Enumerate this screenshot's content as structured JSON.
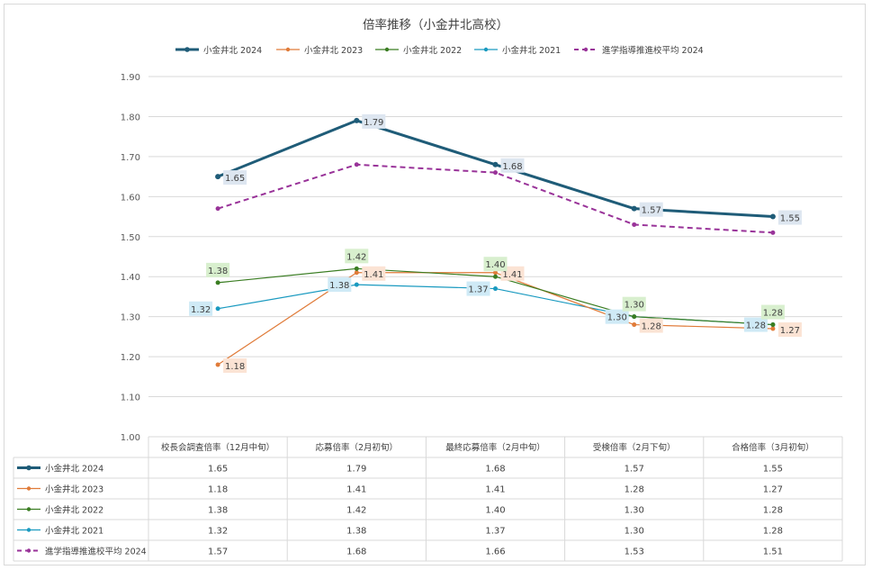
{
  "chart_data": {
    "type": "line",
    "title": "倍率推移（小金井北高校）",
    "categories": [
      "校長会調査倍率（12月中旬）",
      "応募倍率（2月初旬）",
      "最終応募倍率（2月中旬）",
      "受検倍率（2月下旬）",
      "合格倍率（3月初旬）"
    ],
    "ylim": [
      1.0,
      1.9
    ],
    "yticks": [
      "1.00",
      "1.10",
      "1.20",
      "1.30",
      "1.40",
      "1.50",
      "1.60",
      "1.70",
      "1.80",
      "1.90"
    ],
    "grid": true,
    "legend_position": "top",
    "data_table": true,
    "series": [
      {
        "name": "小金井北 2024",
        "values": [
          1.65,
          1.79,
          1.68,
          1.57,
          1.55
        ],
        "labels": [
          "1.65",
          "1.79",
          "1.68",
          "1.57",
          "1.55"
        ],
        "table": [
          "1.65",
          "1.79",
          "1.68",
          "1.57",
          "1.55"
        ],
        "color": "#1f5c78",
        "label_bg": "#dde6f0",
        "dashed": false,
        "width": 3,
        "point_labels": true,
        "label_side": [
          "right",
          "right",
          "right",
          "right",
          "right"
        ]
      },
      {
        "name": "小金井北 2023",
        "values": [
          1.18,
          1.41,
          1.41,
          1.28,
          1.27
        ],
        "labels": [
          "1.18",
          "1.41",
          "1.41",
          "1.28",
          "1.27"
        ],
        "table": [
          "1.18",
          "1.41",
          "1.41",
          "1.28",
          "1.27"
        ],
        "color": "#e07b39",
        "label_bg": "#fbe3d4",
        "dashed": false,
        "width": 1.2,
        "point_labels": true,
        "label_side": [
          "right",
          "right",
          "right",
          "right",
          "right"
        ]
      },
      {
        "name": "小金井北 2022",
        "values": [
          1.385,
          1.42,
          1.4,
          1.3,
          1.28
        ],
        "labels": [
          "1.38",
          "1.42",
          "1.40",
          "1.30",
          "1.28"
        ],
        "table": [
          "1.38",
          "1.42",
          "1.40",
          "1.30",
          "1.28"
        ],
        "color": "#3a7d22",
        "label_bg": "#d8efce",
        "dashed": false,
        "width": 1.2,
        "point_labels": true,
        "label_side": [
          "above",
          "above",
          "above",
          "above",
          "above"
        ]
      },
      {
        "name": "小金井北 2021",
        "values": [
          1.32,
          1.38,
          1.37,
          1.3,
          1.28
        ],
        "labels": [
          "1.32",
          "1.38",
          "1.37",
          "1.30",
          "1.28"
        ],
        "table": [
          "1.32",
          "1.38",
          "1.37",
          "1.30",
          "1.28"
        ],
        "color": "#1a9ac0",
        "label_bg": "#cfeaf6",
        "dashed": false,
        "width": 1.2,
        "point_labels": true,
        "label_side": [
          "left",
          "left",
          "left",
          "left",
          "left"
        ]
      },
      {
        "name": "進学指導推進校平均 2024",
        "values": [
          1.57,
          1.68,
          1.66,
          1.53,
          1.51
        ],
        "labels": [],
        "table": [
          "1.57",
          "1.68",
          "1.66",
          "1.53",
          "1.51"
        ],
        "color": "#993399",
        "label_bg": "",
        "dashed": true,
        "width": 2,
        "point_labels": false,
        "label_side": []
      }
    ]
  }
}
